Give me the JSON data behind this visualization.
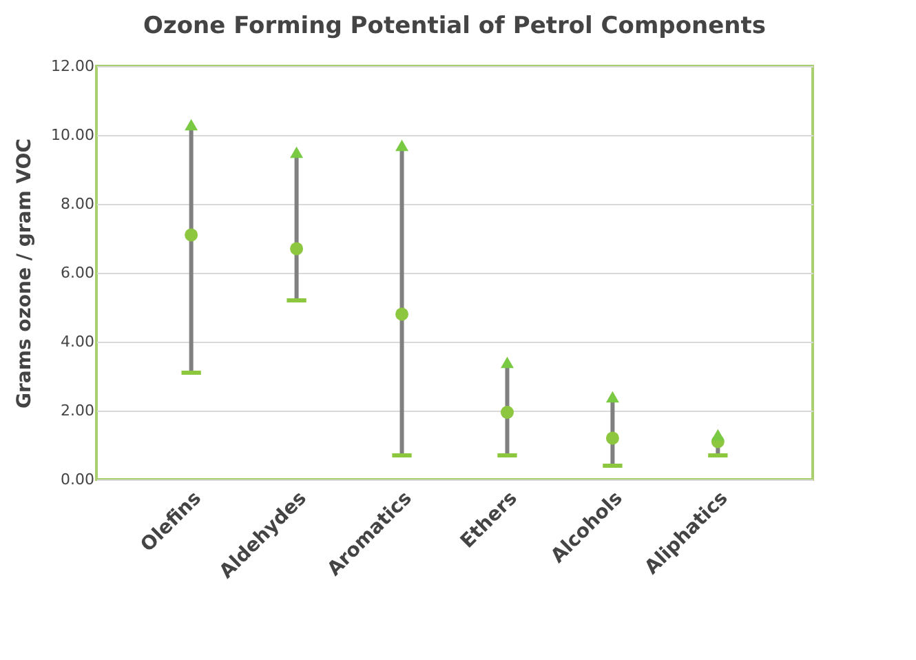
{
  "chart_data": {
    "type": "scatter",
    "title": "Ozone Forming Potential of Petrol Components",
    "ylabel": "Grams ozone / gram VOC",
    "categories": [
      "Olefins",
      "Aldehydes",
      "Aromatics",
      "Ethers",
      "Alcohols",
      "Aliphatics"
    ],
    "series": [
      {
        "marker": "circle",
        "color": "#8dc63f",
        "values": [
          7.1,
          6.7,
          4.8,
          1.95,
          1.2,
          1.1
        ],
        "errors": [
          [
            3.1,
            10.3
          ],
          [
            5.2,
            9.5
          ],
          [
            0.7,
            9.7
          ],
          [
            0.7,
            3.4
          ],
          [
            0.4,
            2.4
          ],
          [
            0.7,
            1.3
          ]
        ]
      },
      {
        "marker": "triangle",
        "color": "#7ac943",
        "values": [
          10.3,
          9.5,
          9.7,
          3.4,
          2.4,
          1.3
        ]
      }
    ],
    "ylim": [
      0,
      12
    ],
    "yticks": [
      {
        "value": 0,
        "label": "0.00"
      },
      {
        "value": 2,
        "label": "2.00"
      },
      {
        "value": 4,
        "label": "4.00"
      },
      {
        "value": 6,
        "label": "6.00"
      },
      {
        "value": 8,
        "label": "8.00"
      },
      {
        "value": 10,
        "label": "10.00"
      },
      {
        "value": 12,
        "label": "12.00"
      }
    ],
    "grid": "y"
  }
}
